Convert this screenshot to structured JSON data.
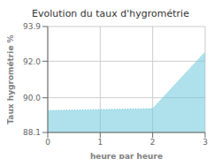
{
  "chart_data": {
    "type": "area",
    "title": "Evolution du taux d'hygrométrie",
    "xlabel": "heure par heure",
    "ylabel": "Taux hygrométrie %",
    "x": [
      0,
      2,
      3
    ],
    "values": [
      89.3,
      89.4,
      92.5
    ],
    "xlim": [
      0,
      3
    ],
    "ylim": [
      88.1,
      93.9
    ],
    "xticks": [
      0,
      1,
      2,
      3
    ],
    "yticks": [
      88.1,
      {
        "value": 90,
        "label": "90.0"
      },
      {
        "value": 92,
        "label": "92.0"
      },
      93.9
    ],
    "color": "#6cc8dc",
    "line_style": "dotted",
    "grid": true
  }
}
